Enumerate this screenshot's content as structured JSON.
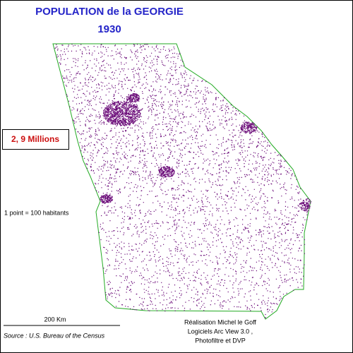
{
  "header": {
    "title": "POPULATION de la GEORGIE",
    "year": "1930"
  },
  "total": "2, 9 Millions",
  "legend": "1 point = 100 habitants",
  "scale": "200 Km",
  "source": "Source : U.S. Bureau of the Census",
  "credits": [
    "Réalisation Michel le Goff",
    "Logiciels Arc View 3.0 ,",
    "Photofiltre et DVP"
  ]
}
